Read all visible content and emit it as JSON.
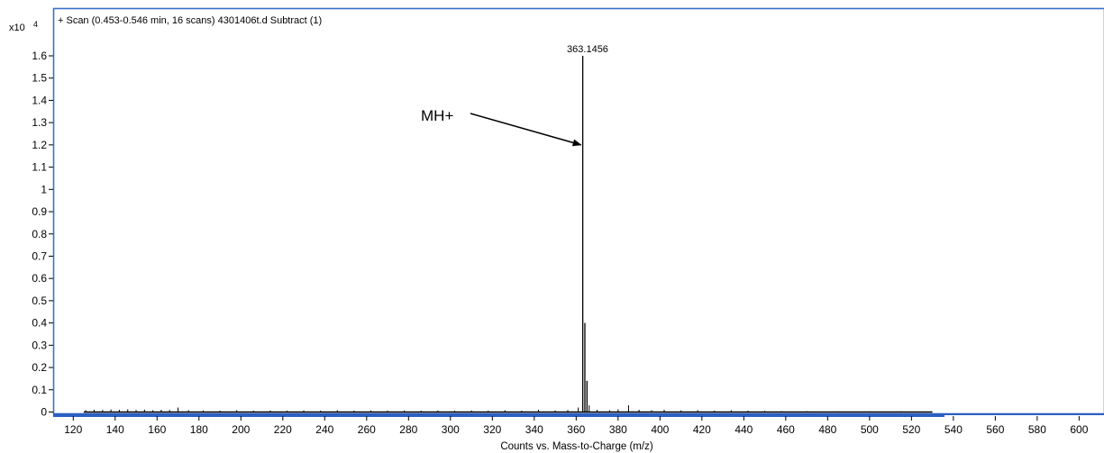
{
  "chart_data": {
    "type": "line",
    "title": "+ Scan (0.453-0.546 min, 16 scans) 4301406t.d  Subtract (1)",
    "xlabel": "Counts vs. Mass-to-Charge (m/z)",
    "ylabel": "",
    "y_scale_label": "x10",
    "y_scale_exponent": "4",
    "xlim": [
      113,
      605
    ],
    "ylim": [
      0,
      1.7
    ],
    "x_ticks": [
      120,
      140,
      160,
      180,
      200,
      220,
      240,
      260,
      280,
      300,
      320,
      340,
      360,
      380,
      400,
      420,
      440,
      460,
      480,
      500,
      520,
      540,
      560,
      580,
      600
    ],
    "x_tick_labels": [
      "120",
      "140",
      "160",
      "180",
      "200",
      "220",
      "240",
      "260",
      "280",
      "300",
      "320",
      "340",
      "360",
      "380",
      "400",
      "420",
      "440",
      "460",
      "480",
      "500",
      "520",
      "540",
      "560",
      "580",
      "600"
    ],
    "y_ticks": [
      0,
      0.1,
      0.2,
      0.3,
      0.4,
      0.5,
      0.6,
      0.7,
      0.8,
      0.9,
      1,
      1.1,
      1.2,
      1.3,
      1.4,
      1.5,
      1.6
    ],
    "y_tick_labels": [
      "0",
      "0.1",
      "0.2",
      "0.3",
      "0.4",
      "0.5",
      "0.6",
      "0.7",
      "0.8",
      "0.9",
      "1",
      "1.1",
      "1.2",
      "1.3",
      "1.4",
      "1.5",
      "1.6"
    ],
    "grid": false,
    "series": [
      {
        "peaks": [
          {
            "x": 126,
            "y": 0.008
          },
          {
            "x": 130,
            "y": 0.01
          },
          {
            "x": 134,
            "y": 0.009
          },
          {
            "x": 138,
            "y": 0.011
          },
          {
            "x": 142,
            "y": 0.01
          },
          {
            "x": 146,
            "y": 0.012
          },
          {
            "x": 150,
            "y": 0.009
          },
          {
            "x": 154,
            "y": 0.011
          },
          {
            "x": 158,
            "y": 0.008
          },
          {
            "x": 162,
            "y": 0.01
          },
          {
            "x": 166,
            "y": 0.009
          },
          {
            "x": 170,
            "y": 0.02
          },
          {
            "x": 175,
            "y": 0.008
          },
          {
            "x": 182,
            "y": 0.007
          },
          {
            "x": 190,
            "y": 0.006
          },
          {
            "x": 198,
            "y": 0.008
          },
          {
            "x": 206,
            "y": 0.006
          },
          {
            "x": 214,
            "y": 0.007
          },
          {
            "x": 222,
            "y": 0.006
          },
          {
            "x": 230,
            "y": 0.007
          },
          {
            "x": 238,
            "y": 0.006
          },
          {
            "x": 246,
            "y": 0.008
          },
          {
            "x": 254,
            "y": 0.006
          },
          {
            "x": 262,
            "y": 0.007
          },
          {
            "x": 270,
            "y": 0.006
          },
          {
            "x": 278,
            "y": 0.007
          },
          {
            "x": 286,
            "y": 0.006
          },
          {
            "x": 294,
            "y": 0.007
          },
          {
            "x": 302,
            "y": 0.006
          },
          {
            "x": 310,
            "y": 0.007
          },
          {
            "x": 318,
            "y": 0.006
          },
          {
            "x": 326,
            "y": 0.008
          },
          {
            "x": 334,
            "y": 0.006
          },
          {
            "x": 342,
            "y": 0.01
          },
          {
            "x": 350,
            "y": 0.007
          },
          {
            "x": 356,
            "y": 0.009
          },
          {
            "x": 361,
            "y": 0.02
          },
          {
            "x": 363.1456,
            "y": 1.6
          },
          {
            "x": 364.15,
            "y": 0.4
          },
          {
            "x": 365.15,
            "y": 0.14
          },
          {
            "x": 366.2,
            "y": 0.03
          },
          {
            "x": 370,
            "y": 0.01
          },
          {
            "x": 376,
            "y": 0.008
          },
          {
            "x": 380,
            "y": 0.012
          },
          {
            "x": 385,
            "y": 0.03
          },
          {
            "x": 390,
            "y": 0.01
          },
          {
            "x": 396,
            "y": 0.008
          },
          {
            "x": 402,
            "y": 0.01
          },
          {
            "x": 410,
            "y": 0.007
          },
          {
            "x": 418,
            "y": 0.008
          },
          {
            "x": 426,
            "y": 0.006
          },
          {
            "x": 434,
            "y": 0.008
          },
          {
            "x": 442,
            "y": 0.006
          },
          {
            "x": 450,
            "y": 0.005
          },
          {
            "x": 458,
            "y": 0.004
          },
          {
            "x": 470,
            "y": 0.004
          },
          {
            "x": 485,
            "y": 0.003
          },
          {
            "x": 500,
            "y": 0.003
          },
          {
            "x": 515,
            "y": 0.003
          },
          {
            "x": 528,
            "y": 0.002
          }
        ]
      }
    ],
    "peak_label": {
      "text": "363.1456",
      "x": 363.1456,
      "y": 1.6
    },
    "annotation": {
      "text": "MH+",
      "arrow_to_x": 363.1456,
      "arrow_to_y": 1.2
    }
  }
}
